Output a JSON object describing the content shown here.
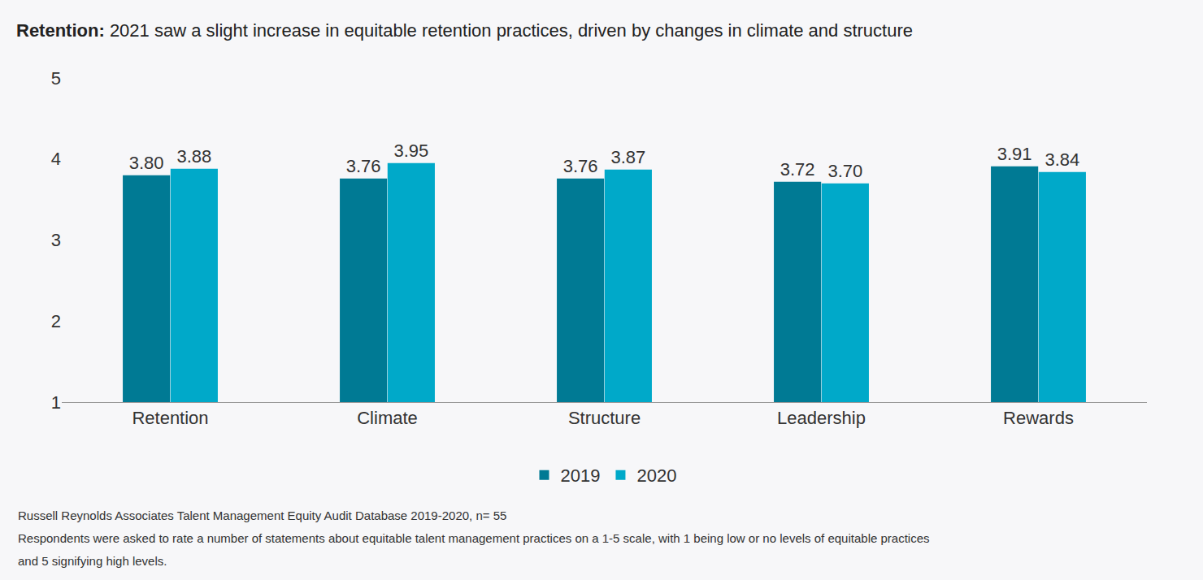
{
  "chart_data": {
    "type": "bar",
    "title": "Retention: 2021 saw a slight increase in equitable retention practices, driven by changes in climate and structure",
    "categories": [
      "Retention",
      "Climate",
      "Structure",
      "Leadership",
      "Rewards"
    ],
    "series": [
      {
        "name": "2019",
        "color": "#007a94",
        "values": [
          3.8,
          3.76,
          3.76,
          3.72,
          3.91
        ],
        "value_labels": [
          "3.80",
          "3.76",
          "3.76",
          "3.72",
          "3.91"
        ]
      },
      {
        "name": "2020",
        "color": "#00a9c9",
        "values": [
          3.88,
          3.95,
          3.87,
          3.7,
          3.84
        ],
        "value_labels": [
          "3.88",
          "3.95",
          "3.87",
          "3.70",
          "3.84"
        ]
      }
    ],
    "ylim": [
      1,
      5
    ],
    "yticks": [
      1,
      2,
      3,
      4,
      5
    ],
    "grid": false,
    "legend": "bottom",
    "data_labels": true,
    "annotations": [
      "Russell Reynolds Associates Talent Management Equity Audit Database 2019-2020, n= 55",
      "Respondents were asked to rate a number of statements about equitable talent management practices on a 1-5 scale, with 1 being low or no levels of equitable practices",
      "and 5 signifying high levels."
    ]
  }
}
